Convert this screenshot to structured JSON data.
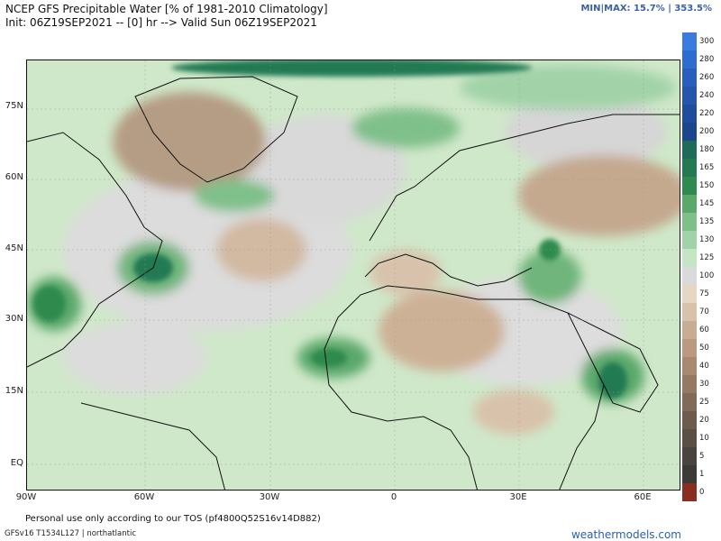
{
  "header": {
    "title_line1": "NCEP GFS Precipitable Water [% of 1981-2010 Climatology]",
    "title_line2": "Init: 06Z19SEP2021 -- [0] hr --> Valid Sun 06Z19SEP2021",
    "minmax": "MIN|MAX: 15.7% | 353.5%"
  },
  "map": {
    "lat_labels": [
      "75N",
      "60N",
      "45N",
      "30N",
      "15N",
      "EQ"
    ],
    "lon_labels": [
      "90W",
      "60W",
      "30W",
      "0",
      "30E",
      "60E"
    ]
  },
  "colorbar": {
    "labels": [
      "300",
      "280",
      "260",
      "240",
      "220",
      "200",
      "180",
      "165",
      "150",
      "145",
      "135",
      "130",
      "125",
      "100",
      "75",
      "70",
      "60",
      "50",
      "40",
      "30",
      "25",
      "20",
      "10",
      "5",
      "1",
      "0"
    ],
    "colors": [
      "#3a7be0",
      "#2f6ccf",
      "#285fbf",
      "#2456ad",
      "#1f4d9e",
      "#1b468c",
      "#1f6b5a",
      "#237a52",
      "#2e8a4e",
      "#5aa86a",
      "#7fc08a",
      "#a2d3a8",
      "#c4e6c4",
      "#dadada",
      "#e6d6c4",
      "#d8c2ab",
      "#c9ad93",
      "#bb9a7f",
      "#a98a70",
      "#967963",
      "#826a58",
      "#6d5c4e",
      "#5a4f45",
      "#4a443e",
      "#3b3a37",
      "#8b2e22"
    ]
  },
  "footer": {
    "tos": "Personal use only according to our TOS (pf4800Q52S16v14D882)",
    "model": "GFSv16 T1534L127 | northatlantic",
    "brand": "weathermodels.com"
  }
}
